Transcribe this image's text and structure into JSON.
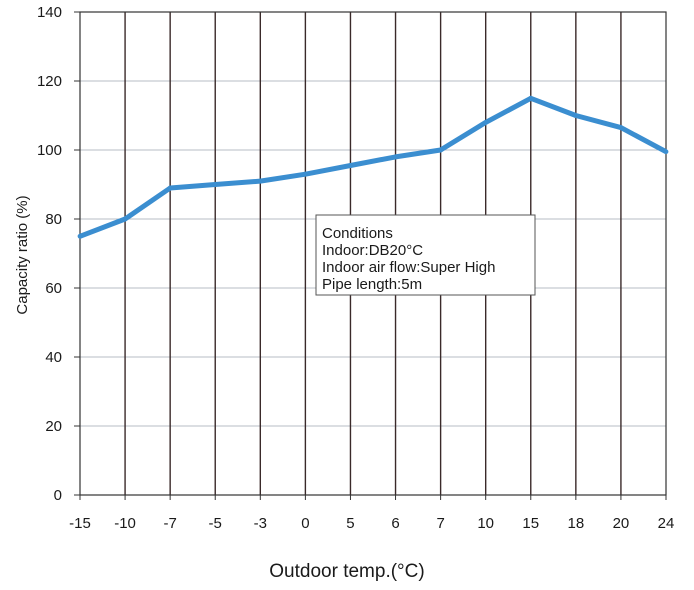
{
  "chart_data": {
    "type": "line",
    "title": "",
    "xlabel": "Outdoor temp.(°C)",
    "ylabel": "Capacity ratio (%)",
    "categories": [
      "-15",
      "-10",
      "-7",
      "-5",
      "-3",
      "0",
      "5",
      "6",
      "7",
      "10",
      "15",
      "18",
      "20",
      "24"
    ],
    "series": [
      {
        "values": [
          75,
          80,
          89,
          90,
          91,
          93,
          95.5,
          98,
          100,
          108,
          115,
          110,
          106.5,
          99.5
        ]
      }
    ],
    "ylim": [
      0,
      140
    ],
    "yticks": [
      0,
      20,
      40,
      60,
      80,
      100,
      120,
      140
    ],
    "grid": true,
    "colors": {
      "line": "#3b8ed0",
      "vertical_grid": "#3a2a2a",
      "horizontal_grid": "#b7bdc6"
    },
    "annotation": {
      "lines": [
        "Conditions",
        "Indoor:DB20°C",
        "Indoor air flow:Super High",
        "Pipe length:5m"
      ]
    }
  }
}
